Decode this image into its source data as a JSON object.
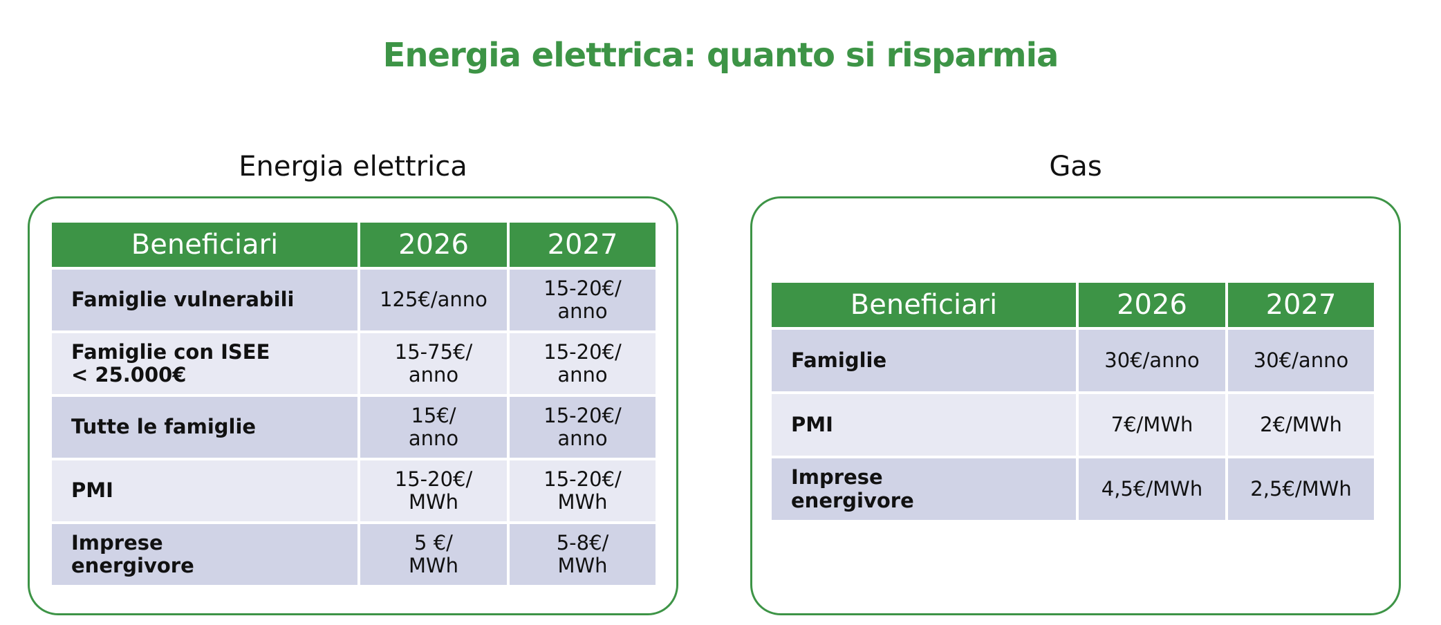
{
  "title": "Energia elettrica: quanto si risparmia",
  "panels": [
    {
      "heading": "Energia elettrica",
      "table": {
        "header": [
          "Beneficiari",
          "2026",
          "2027"
        ],
        "rows": [
          [
            "Famiglie vulnerabili",
            "125€/anno",
            "15-20€/\nanno"
          ],
          [
            "Famiglie con ISEE\n< 25.000€",
            "15-75€/\nanno",
            "15-20€/\nanno"
          ],
          [
            "Tutte le famiglie",
            "15€/\nanno",
            "15-20€/\nanno"
          ],
          [
            "PMI",
            "15-20€/\nMWh",
            "15-20€/\nMWh"
          ],
          [
            "Imprese\nenergivore",
            "5 €/\nMWh",
            "5-8€/\nMWh"
          ]
        ]
      }
    },
    {
      "heading": "Gas",
      "table": {
        "header": [
          "Beneficiari",
          "2026",
          "2027"
        ],
        "rows": [
          [
            "Famiglie",
            "30€/anno",
            "30€/anno"
          ],
          [
            "PMI",
            "7€/MWh",
            "2€/MWh"
          ],
          [
            "Imprese\nenergivore",
            "4,5€/MWh",
            "2,5€/MWh"
          ]
        ]
      }
    }
  ]
}
